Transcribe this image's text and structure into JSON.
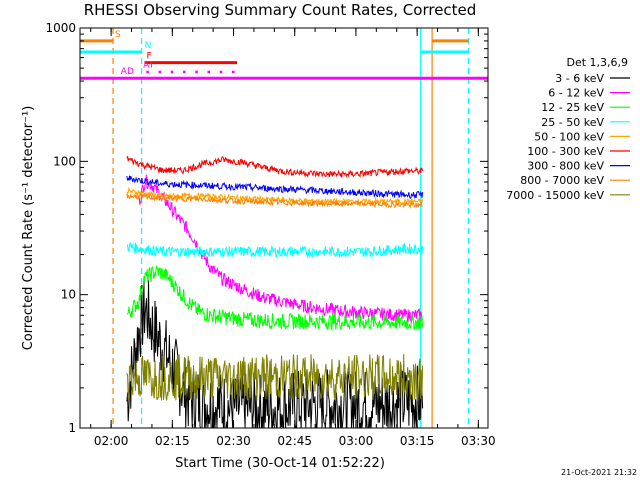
{
  "chart_data": {
    "type": "line",
    "title": "RHESSI Observing Summary Count Rates, Corrected",
    "xlabel": "Start Time (30-Oct-14 01:52:22)",
    "ylabel": "Corrected Count Rate (s⁻¹ detector⁻¹)",
    "yscale": "log",
    "ylim": [
      1,
      1000
    ],
    "xlim_minutes_after_start": [
      0,
      100
    ],
    "x_tick_labels": [
      "02:00",
      "02:15",
      "02:30",
      "02:45",
      "03:00",
      "03:15",
      "03:30"
    ],
    "x_tick_minutes": [
      7.63,
      22.63,
      37.63,
      52.63,
      67.63,
      82.63,
      97.63
    ],
    "y_tick_labels": [
      "1",
      "10",
      "100",
      "1000"
    ],
    "y_tick_values": [
      1,
      10,
      100,
      1000
    ],
    "legend_title": "Det 1,3,6,9",
    "legend_position": "right",
    "series": [
      {
        "name": "3 - 6 keV",
        "color": "#000000",
        "points": [
          [
            11.5,
            1.6
          ],
          [
            14.5,
            5.5
          ],
          [
            16.0,
            8.0
          ],
          [
            18.0,
            5.5
          ],
          [
            20.0,
            4.2
          ],
          [
            22.0,
            3.2
          ],
          [
            24.0,
            2.4
          ],
          [
            26.0,
            1.8
          ],
          [
            28.0,
            1.6
          ],
          [
            32.0,
            1.5
          ],
          [
            38.0,
            1.4
          ],
          [
            45.0,
            1.4
          ],
          [
            55.0,
            1.5
          ],
          [
            65.0,
            1.5
          ],
          [
            75.0,
            1.5
          ],
          [
            82.0,
            1.6
          ],
          [
            84.0,
            1.6
          ]
        ]
      },
      {
        "name": "6 - 12 keV",
        "color": "#ff00ff",
        "points": [
          [
            14.5,
            50
          ],
          [
            16.0,
            72
          ],
          [
            18.0,
            65
          ],
          [
            20.0,
            55
          ],
          [
            22.0,
            46
          ],
          [
            24.0,
            38
          ],
          [
            26.0,
            32
          ],
          [
            28.0,
            26
          ],
          [
            30.0,
            20
          ],
          [
            32.0,
            16
          ],
          [
            35.0,
            13
          ],
          [
            40.0,
            11
          ],
          [
            45.0,
            9.5
          ],
          [
            50.0,
            8.8
          ],
          [
            55.0,
            8.2
          ],
          [
            60.0,
            7.8
          ],
          [
            65.0,
            7.5
          ],
          [
            70.0,
            7.3
          ],
          [
            75.0,
            7.1
          ],
          [
            80.0,
            7.0
          ],
          [
            84.0,
            7.0
          ]
        ]
      },
      {
        "name": "12 - 25 keV",
        "color": "#00ff00",
        "points": [
          [
            11.5,
            7.0
          ],
          [
            14.5,
            9.0
          ],
          [
            15.5,
            13
          ],
          [
            17.0,
            14
          ],
          [
            19.0,
            15
          ],
          [
            21.0,
            14
          ],
          [
            23.0,
            12
          ],
          [
            25.0,
            10
          ],
          [
            27.0,
            8.5
          ],
          [
            29.0,
            7.5
          ],
          [
            32.0,
            7.0
          ],
          [
            40.0,
            6.5
          ],
          [
            50.0,
            6.3
          ],
          [
            60.0,
            6.3
          ],
          [
            70.0,
            6.2
          ],
          [
            80.0,
            6.2
          ],
          [
            84.0,
            6.2
          ]
        ]
      },
      {
        "name": "25 - 50 keV",
        "color": "#00ffff",
        "points": [
          [
            11.5,
            23
          ],
          [
            20.0,
            21
          ],
          [
            30.0,
            21
          ],
          [
            40.0,
            21
          ],
          [
            50.0,
            21
          ],
          [
            60.0,
            21
          ],
          [
            70.0,
            21
          ],
          [
            80.0,
            22
          ],
          [
            84.0,
            22
          ]
        ]
      },
      {
        "name": "50 - 100 keV",
        "color": "#ffa500",
        "points": [
          [
            11.5,
            60
          ],
          [
            20.0,
            55
          ],
          [
            30.0,
            55
          ],
          [
            40.0,
            53
          ],
          [
            50.0,
            51
          ],
          [
            60.0,
            50
          ],
          [
            70.0,
            50
          ],
          [
            80.0,
            50
          ],
          [
            84.0,
            50
          ]
        ]
      },
      {
        "name": "100 - 300 keV",
        "color": "#ff0000",
        "points": [
          [
            11.5,
            105
          ],
          [
            15.0,
            95
          ],
          [
            20.0,
            86
          ],
          [
            25.0,
            85
          ],
          [
            30.0,
            95
          ],
          [
            35.0,
            103
          ],
          [
            40.0,
            98
          ],
          [
            45.0,
            90
          ],
          [
            50.0,
            84
          ],
          [
            55.0,
            82
          ],
          [
            60.0,
            80
          ],
          [
            65.0,
            80
          ],
          [
            70.0,
            81
          ],
          [
            75.0,
            83
          ],
          [
            80.0,
            85
          ],
          [
            84.0,
            84
          ]
        ]
      },
      {
        "name": "300 - 800 keV",
        "color": "#0000ff",
        "points": [
          [
            11.5,
            75
          ],
          [
            15.0,
            72
          ],
          [
            20.0,
            68
          ],
          [
            30.0,
            66
          ],
          [
            40.0,
            64
          ],
          [
            50.0,
            62
          ],
          [
            60.0,
            60
          ],
          [
            70.0,
            58
          ],
          [
            80.0,
            56
          ],
          [
            84.0,
            56
          ]
        ]
      },
      {
        "name": "800 - 7000 keV",
        "color": "#ff8000",
        "points": [
          [
            11.5,
            55
          ],
          [
            20.0,
            53
          ],
          [
            30.0,
            52
          ],
          [
            40.0,
            50
          ],
          [
            50.0,
            49
          ],
          [
            60.0,
            48
          ],
          [
            70.0,
            48
          ],
          [
            80.0,
            47
          ],
          [
            84.0,
            47
          ]
        ]
      },
      {
        "name": "7000 - 15000 keV",
        "color": "#808000",
        "points": [
          [
            11.5,
            2.4
          ],
          [
            20.0,
            2.4
          ],
          [
            30.0,
            2.4
          ],
          [
            40.0,
            2.4
          ],
          [
            50.0,
            2.4
          ],
          [
            60.0,
            2.4
          ],
          [
            70.0,
            2.4
          ],
          [
            80.0,
            2.4
          ],
          [
            84.0,
            2.4
          ]
        ]
      }
    ],
    "vertical_markers": [
      {
        "minute": 8.1,
        "color": "#ff8000",
        "style": "dashed"
      },
      {
        "minute": 15.1,
        "color": "#00ffff",
        "style": "dashed"
      },
      {
        "minute": 83.5,
        "color": "#00ffff",
        "style": "solid"
      },
      {
        "minute": 86.3,
        "color": "#ff8000",
        "style": "solid"
      },
      {
        "minute": 95.2,
        "color": "#00ffff",
        "style": "dashed"
      }
    ],
    "flag_bars": [
      {
        "label": "S",
        "color": "#ff8000",
        "y": 800,
        "segments": [
          [
            0,
            8.1
          ],
          [
            86.3,
            95.2
          ]
        ]
      },
      {
        "label": "N",
        "color": "#00ffff",
        "y": 660,
        "segments": [
          [
            0,
            15.1
          ],
          [
            83.5,
            95.2
          ]
        ]
      },
      {
        "label": "F",
        "color": "#ff0000",
        "y": 550,
        "segments": [
          [
            15.8,
            38.5
          ]
        ]
      },
      {
        "label": "AD",
        "color": "#ff00ff",
        "y": 420,
        "segments": [
          [
            0,
            100
          ]
        ]
      },
      {
        "label": "AT",
        "color": "#ff00ff",
        "y": 470,
        "dots": [
          16.5,
          19.5,
          22.5,
          25.5,
          28.5,
          31.5,
          34.5,
          37.5
        ]
      }
    ]
  },
  "footer": {
    "date_stamp": "21-Oct-2021 21:32"
  }
}
